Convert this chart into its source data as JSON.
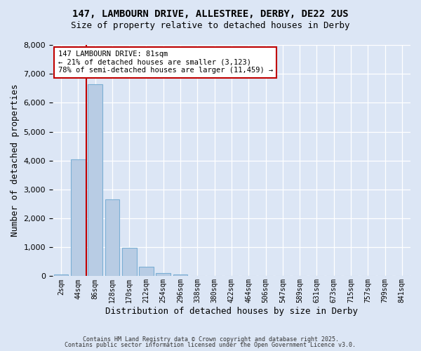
{
  "title1": "147, LAMBOURN DRIVE, ALLESTREE, DERBY, DE22 2US",
  "title2": "Size of property relative to detached houses in Derby",
  "xlabel": "Distribution of detached houses by size in Derby",
  "ylabel": "Number of detached properties",
  "bin_labels": [
    "2sqm",
    "44sqm",
    "86sqm",
    "128sqm",
    "170sqm",
    "212sqm",
    "254sqm",
    "296sqm",
    "338sqm",
    "380sqm",
    "422sqm",
    "464sqm",
    "506sqm",
    "547sqm",
    "589sqm",
    "631sqm",
    "673sqm",
    "715sqm",
    "757sqm",
    "799sqm",
    "841sqm"
  ],
  "bar_values": [
    50,
    4050,
    6650,
    2650,
    980,
    330,
    100,
    50,
    0,
    0,
    0,
    0,
    0,
    0,
    0,
    0,
    0,
    0,
    0,
    0,
    0
  ],
  "bar_color": "#b8cce4",
  "bar_edgecolor": "#7bafd4",
  "vline_color": "#c00000",
  "vline_pos": 1.5,
  "ylim": [
    0,
    8000
  ],
  "yticks": [
    0,
    1000,
    2000,
    3000,
    4000,
    5000,
    6000,
    7000,
    8000
  ],
  "annotation_title": "147 LAMBOURN DRIVE: 81sqm",
  "annotation_line1": "← 21% of detached houses are smaller (3,123)",
  "annotation_line2": "78% of semi-detached houses are larger (11,459) →",
  "annotation_box_facecolor": "#ffffff",
  "annotation_box_edgecolor": "#c00000",
  "footer1": "Contains HM Land Registry data © Crown copyright and database right 2025.",
  "footer2": "Contains public sector information licensed under the Open Government Licence v3.0.",
  "bg_color": "#dce6f5",
  "plot_bg_color": "#dce6f5"
}
